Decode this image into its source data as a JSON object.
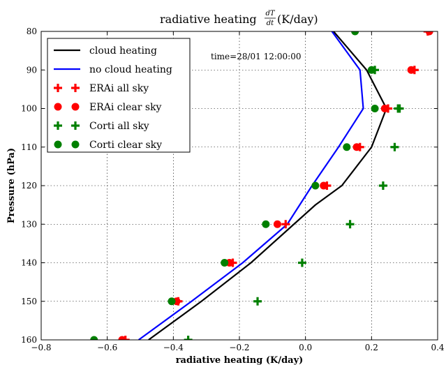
{
  "chart_data": {
    "type": "line",
    "title": "radiative heating",
    "title_fraction": {
      "numerator": "dT",
      "denominator": "dt"
    },
    "title_unit": "(K/day)",
    "xlabel": "radiative heating (K/day)",
    "ylabel": "Pressure (hPa)",
    "xlim": [
      -0.8,
      0.4
    ],
    "ylim": [
      160,
      80
    ],
    "y_inverted": true,
    "grid": true,
    "legend_position": "top-left",
    "annotation": "time=28/01 12:00:00",
    "xticks": [
      -0.8,
      -0.6,
      -0.4,
      -0.2,
      0.0,
      0.2,
      0.4
    ],
    "xtick_labels": [
      "−0.8",
      "−0.6",
      "−0.4",
      "−0.2",
      "0.0",
      "0.2",
      "0.4"
    ],
    "yticks": [
      80,
      90,
      100,
      110,
      120,
      130,
      140,
      150,
      160
    ],
    "ytick_labels": [
      "80",
      "90",
      "100",
      "110",
      "120",
      "130",
      "140",
      "150",
      "160"
    ],
    "series": [
      {
        "name": "cloud heating",
        "kind": "line",
        "color": "#000000",
        "x": [
          0.085,
          0.185,
          0.245,
          0.2,
          0.11,
          0.03,
          -0.035,
          -0.165,
          -0.315,
          -0.475
        ],
        "y": [
          80,
          90,
          100,
          110,
          120,
          125,
          130,
          140,
          150,
          160
        ]
      },
      {
        "name": "no cloud heating",
        "kind": "line",
        "color": "#0000ff",
        "x": [
          0.08,
          0.165,
          0.175,
          0.1,
          0.02,
          -0.055,
          -0.19,
          -0.345,
          -0.505
        ],
        "y": [
          80,
          90,
          100,
          110,
          120,
          130,
          140,
          150,
          160
        ]
      },
      {
        "name": "ERAi all sky",
        "kind": "plus",
        "color": "#ff0000",
        "x": [
          0.37,
          0.33,
          0.25,
          0.165,
          0.065,
          -0.06,
          -0.22,
          -0.385,
          -0.545
        ],
        "y": [
          80,
          90,
          100,
          110,
          120,
          130,
          140,
          150,
          160
        ]
      },
      {
        "name": "ERAi clear sky",
        "kind": "circle",
        "color": "#ff0000",
        "x": [
          0.375,
          0.32,
          0.24,
          0.155,
          0.055,
          -0.085,
          -0.23,
          -0.39,
          -0.555
        ],
        "y": [
          80,
          90,
          100,
          110,
          120,
          130,
          140,
          150,
          160
        ]
      },
      {
        "name": "Corti all sky",
        "kind": "plus",
        "color": "#008000",
        "x": [
          0.28,
          0.21,
          0.285,
          0.27,
          0.235,
          0.135,
          -0.01,
          -0.145,
          -0.355
        ],
        "y": [
          100,
          90,
          100,
          110,
          120,
          130,
          140,
          150,
          160
        ]
      },
      {
        "name": "Corti clear sky",
        "kind": "circle",
        "color": "#008000",
        "x": [
          0.15,
          0.2,
          0.21,
          0.125,
          0.03,
          -0.12,
          -0.245,
          -0.405,
          -0.64
        ],
        "y": [
          80,
          90,
          100,
          110,
          120,
          130,
          140,
          150,
          160
        ]
      }
    ]
  }
}
